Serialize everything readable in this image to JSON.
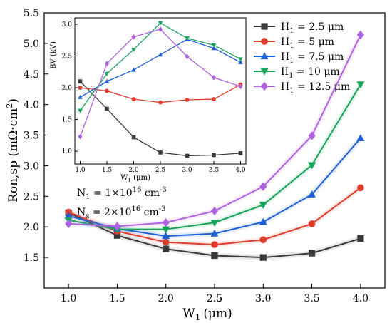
{
  "chart_data": [
    {
      "type": "line",
      "xlabel": "W",
      "xlabel_sub": "1",
      "xlabel_unit": "(μm)",
      "ylabel": "Ron,sp  (mΩ·cm",
      "ylabel_sup": "2",
      "ylabel_tail": ")",
      "xlim": [
        0.75,
        4.25
      ],
      "ylim": [
        1.0,
        5.5
      ],
      "xticks": [
        1.0,
        1.5,
        2.0,
        2.5,
        3.0,
        3.5,
        4.0
      ],
      "yticks": [
        1.5,
        2.0,
        2.5,
        3.0,
        3.5,
        4.0,
        4.5,
        5.0,
        5.5
      ],
      "x": [
        1.0,
        1.5,
        2.0,
        2.5,
        3.0,
        3.5,
        4.0
      ],
      "series": [
        {
          "name": "H",
          "sub": "1",
          "value": " = 2.5 μm",
          "color": "#3a3a3a",
          "marker": "square",
          "values": [
            2.23,
            1.86,
            1.64,
            1.53,
            1.5,
            1.57,
            1.81
          ]
        },
        {
          "name": "H",
          "sub": "1",
          "value": " = 5 μm",
          "color": "#e03c2c",
          "marker": "circle",
          "values": [
            2.24,
            1.93,
            1.75,
            1.71,
            1.79,
            2.05,
            2.64
          ]
        },
        {
          "name": "H",
          "sub": "1",
          "value": " = 7.5 μm",
          "color": "#1e5fd6",
          "marker": "triangle-up",
          "values": [
            2.18,
            1.97,
            1.85,
            1.89,
            2.08,
            2.53,
            3.45
          ]
        },
        {
          "name": "II",
          "sub": "1",
          "value": " = 10 μm",
          "color": "#18a35b",
          "marker": "triangle-down",
          "values": [
            2.11,
            1.96,
            1.96,
            2.07,
            2.36,
            3.01,
            4.33
          ]
        },
        {
          "name": "H",
          "sub": "1",
          "value": " = 12.5 μm",
          "color": "#b061e0",
          "marker": "diamond",
          "values": [
            2.05,
            2.01,
            2.07,
            2.26,
            2.66,
            3.49,
            5.14
          ]
        }
      ],
      "annotations": [
        {
          "main": "N",
          "sub": "1",
          "rest": " = 1×10",
          "sup": "16",
          "unit": " cm",
          "unit_sup": "-3"
        },
        {
          "main": "N",
          "sub": "s",
          "rest": " = 2×10",
          "sup": "16",
          "unit": " cm",
          "unit_sup": "-3"
        }
      ],
      "legend_position": "top-right",
      "grid": false
    },
    {
      "type": "line",
      "xlabel": "W",
      "xlabel_sub": "1",
      "xlabel_unit": " (μm)",
      "ylabel": "BV (kV)",
      "xlim": [
        0.9,
        4.1
      ],
      "ylim": [
        0.8,
        3.1
      ],
      "xticks": [
        1.0,
        1.5,
        2.0,
        2.5,
        3.0,
        3.5,
        4.0
      ],
      "yticks": [
        1.0,
        1.5,
        2.0,
        2.5,
        3.0
      ],
      "x": [
        1.0,
        1.5,
        2.0,
        2.5,
        3.0,
        3.5,
        4.0
      ],
      "series": [
        {
          "color": "#3a3a3a",
          "marker": "square",
          "values": [
            2.1,
            1.67,
            1.22,
            0.98,
            0.93,
            0.94,
            0.97
          ]
        },
        {
          "color": "#e03c2c",
          "marker": "circle",
          "values": [
            2.0,
            1.95,
            1.82,
            1.77,
            1.81,
            1.82,
            2.05
          ]
        },
        {
          "color": "#1e5fd6",
          "marker": "triangle-up",
          "values": [
            1.85,
            2.1,
            2.28,
            2.52,
            2.76,
            2.62,
            2.4
          ]
        },
        {
          "color": "#18a35b",
          "marker": "triangle-down",
          "values": [
            1.64,
            2.22,
            2.6,
            3.02,
            2.78,
            2.67,
            2.45
          ]
        },
        {
          "color": "#b061e0",
          "marker": "diamond",
          "values": [
            1.23,
            2.38,
            2.8,
            2.92,
            2.49,
            2.16,
            2.02
          ]
        }
      ],
      "grid": false
    }
  ]
}
